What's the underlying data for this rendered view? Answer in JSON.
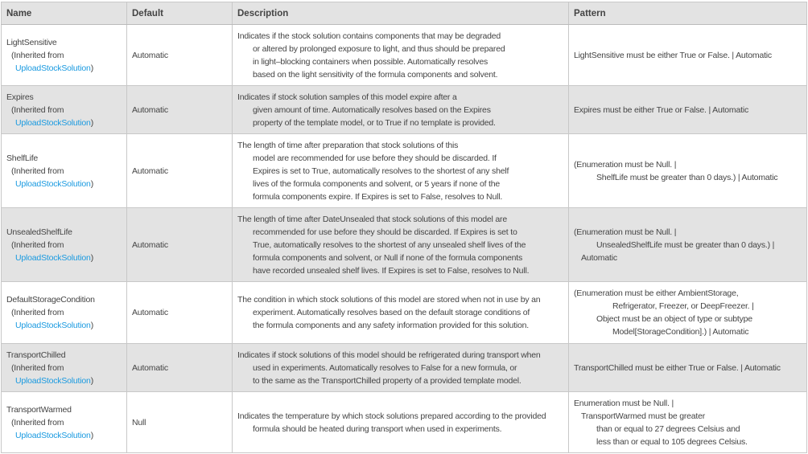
{
  "headers": [
    "Name",
    "Default",
    "Description",
    "Pattern"
  ],
  "inherited_prefix": "(Inherited from",
  "inherited_link": "UploadStockSolution",
  "inherited_suffix": ")",
  "rows": [
    {
      "name": "LightSensitive",
      "default": "Automatic",
      "description": [
        "Indicates if the stock solution contains components that may be degraded",
        "or altered by prolonged exposure to light, and thus should be prepared",
        "in light–blocking containers when possible.  Automatically resolves",
        "based on the light sensitivity of the formula components and solvent."
      ],
      "pattern": [
        "LightSensitive must be either True or False. | Automatic"
      ]
    },
    {
      "name": "Expires",
      "default": "Automatic",
      "description": [
        "Indicates if stock solution samples of this model expire after a",
        "given amount of time.  Automatically resolves based on the Expires",
        "property of the template model, or to True if no template is provided."
      ],
      "pattern": [
        "Expires must be either True or False. | Automatic"
      ]
    },
    {
      "name": "ShelfLife",
      "default": "Automatic",
      "description": [
        "The length of time after preparation that stock solutions of this",
        "model are recommended for use before they should be discarded.  If",
        "Expires is set to True, automatically resolves to the shortest of any shelf",
        "lives of the formula components and solvent, or 5 years if none of the",
        "formula components expire. If Expires is set to False, resolves to Null."
      ],
      "pattern": [
        "(Enumeration must be Null. |",
        "ShelfLife must be greater than 0 days.) | Automatic"
      ]
    },
    {
      "name": "UnsealedShelfLife",
      "default": "Automatic",
      "description": [
        "The length of time after DateUnsealed that stock solutions of this model are",
        "recommended for use before they should be discarded.  If Expires is set to",
        "True, automatically resolves to the shortest of any unsealed shelf lives of the",
        "formula components and solvent, or Null if none of the formula components",
        "have recorded unsealed shelf lives. If Expires is set to False, resolves to Null."
      ],
      "pattern": [
        "(Enumeration must be Null. |",
        "UnsealedShelfLife must be greater than 0 days.) |",
        "Automatic"
      ]
    },
    {
      "name": "DefaultStorageCondition",
      "default": "Automatic",
      "description": [
        "The condition in which stock solutions of this model are stored when not in use by an",
        "experiment.  Automatically resolves based on the default storage conditions of",
        "the formula components and any safety information provided for this solution."
      ],
      "pattern": [
        "(Enumeration must be either AmbientStorage,",
        "Refrigerator, Freezer, or DeepFreezer. |",
        "Object must be an object of type or subtype",
        "Model[StorageCondition].) | Automatic"
      ]
    },
    {
      "name": "TransportChilled",
      "default": "Automatic",
      "description": [
        "Indicates if stock solutions of this model should be refrigerated during transport when",
        "used in experiments.  Automatically resolves to False for a new formula, or",
        "to the same as the TransportChilled property of a provided template model."
      ],
      "pattern": [
        "TransportChilled must be either True or False. | Automatic"
      ]
    },
    {
      "name": "TransportWarmed",
      "default": "Null",
      "description": [
        "Indicates the temperature by which stock solutions prepared according to the provided",
        "formula should be heated during transport when used in experiments."
      ],
      "pattern": [
        "Enumeration must be Null. |",
        "TransportWarmed must be greater",
        "than or equal to 27 degrees Celsius and",
        "less than or equal to 105 degrees Celsius."
      ]
    }
  ]
}
